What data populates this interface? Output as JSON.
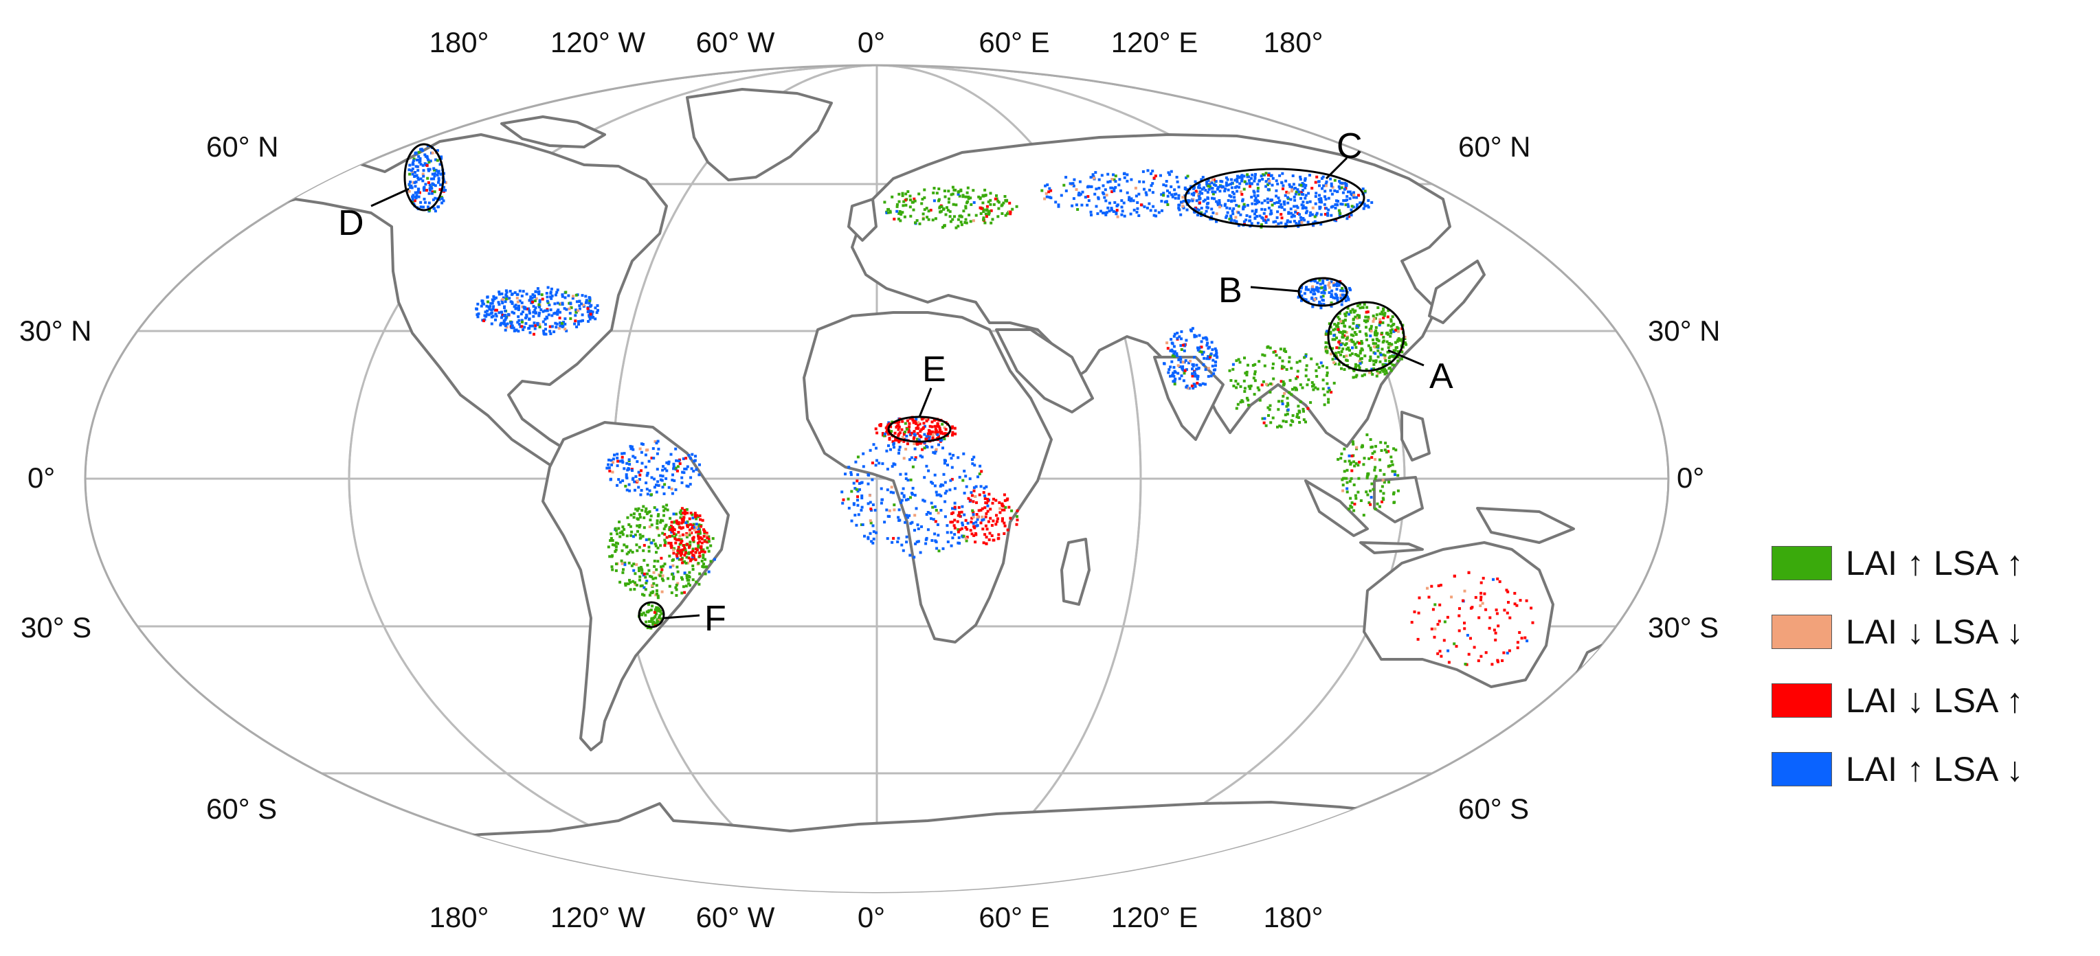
{
  "map": {
    "top_longitude_labels": [
      "180°",
      "120° W",
      "60° W",
      "0°",
      "60° E",
      "120° E",
      "180°"
    ],
    "bottom_longitude_labels": [
      "180°",
      "120° W",
      "60° W",
      "0°",
      "60° E",
      "120° E",
      "180°"
    ],
    "left_latitude_labels": [
      "60° N",
      "30° N",
      "0°",
      "30° S",
      "60° S"
    ],
    "right_latitude_labels": [
      "60° N",
      "30° N",
      "0°",
      "30° S",
      "60° S"
    ],
    "regions": [
      {
        "letter": "A",
        "lon": 112,
        "lat": 28
      },
      {
        "letter": "B",
        "lon": 108,
        "lat": 35
      },
      {
        "letter": "C",
        "lon": 98,
        "lat": 58
      },
      {
        "letter": "D",
        "lon": -134,
        "lat": 60
      },
      {
        "letter": "E",
        "lon": 8,
        "lat": 10
      },
      {
        "letter": "F",
        "lon": -53,
        "lat": -25
      }
    ]
  },
  "legend": {
    "items": [
      {
        "label": "LAI ↑ LSA ↑",
        "color": "#3aaa0c"
      },
      {
        "label": "LAI ↓ LSA ↓",
        "color": "#f2a27a"
      },
      {
        "label": "LAI ↓ LSA ↑",
        "color": "#ff0000"
      },
      {
        "label": "LAI ↑ LSA ↓",
        "color": "#0a63ff"
      }
    ]
  }
}
